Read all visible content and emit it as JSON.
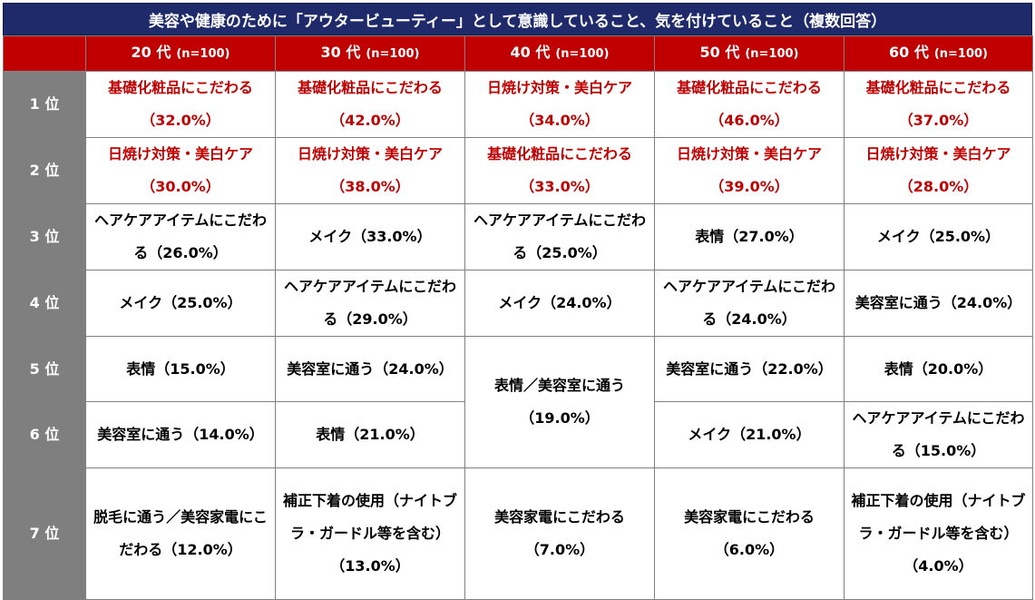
{
  "title": "美容や健康のために「アウタービューティー」として意識していること、気を付けていること（複数回答）",
  "columns": [
    {
      "age": "20 代",
      "n": "(n=100)"
    },
    {
      "age": "30 代",
      "n": "(n=100)"
    },
    {
      "age": "40 代",
      "n": "(n=100)"
    },
    {
      "age": "50 代",
      "n": "(n=100)"
    },
    {
      "age": "60 代",
      "n": "(n=100)"
    }
  ],
  "ranks": [
    "1 位",
    "2 位",
    "3 位",
    "4 位",
    "5 位",
    "6 位",
    "7 位"
  ],
  "cells": {
    "r1": [
      "基礎化粧品にこだわる（32.0%）",
      "基礎化粧品にこだわる（42.0%）",
      "日焼け対策・美白ケア（34.0%）",
      "基礎化粧品にこだわる（46.0%）",
      "基礎化粧品にこだわる（37.0%）"
    ],
    "r2": [
      "日焼け対策・美白ケア（30.0%）",
      "日焼け対策・美白ケア（38.0%）",
      "基礎化粧品にこだわる（33.0%）",
      "日焼け対策・美白ケア（39.0%）",
      "日焼け対策・美白ケア（28.0%）"
    ],
    "r3": [
      "ヘアケアアイテムにこだわる（26.0%）",
      "メイク（33.0%）",
      "ヘアケアアイテムにこだわる（25.0%）",
      "表情（27.0%）",
      "メイク（25.0%）"
    ],
    "r4": [
      "メイク（25.0%）",
      "ヘアケアアイテムにこだわる（29.0%）",
      "メイク（24.0%）",
      "ヘアケアアイテムにこだわる（24.0%）",
      "美容室に通う（24.0%）"
    ],
    "r5": [
      "表情（15.0%）",
      "美容室に通う（24.0%）",
      "表情／美容室に通う（19.0%）",
      "美容室に通う（22.0%）",
      "表情（20.0%）"
    ],
    "r6": [
      "美容室に通う（14.0%）",
      "表情（21.0%）",
      "メイク（21.0%）",
      "ヘアケアアイテムにこだわる（15.0%）"
    ],
    "r7": [
      "脱毛に通う／美容家電にこだわる（12.0%）",
      "補正下着の使用（ナイトブラ・ガードル等を含む）（13.0%）",
      "美容家電にこだわる（7.0%）",
      "美容家電にこだわる（6.0%）",
      "補正下着の使用（ナイトブラ・ガードル等を含む）（4.0%）"
    ]
  },
  "colors": {
    "title_bg": "#1f2a6b",
    "header_bg": "#c00000",
    "rank_bg": "#7f7f7f",
    "highlight_text": "#c00000"
  }
}
